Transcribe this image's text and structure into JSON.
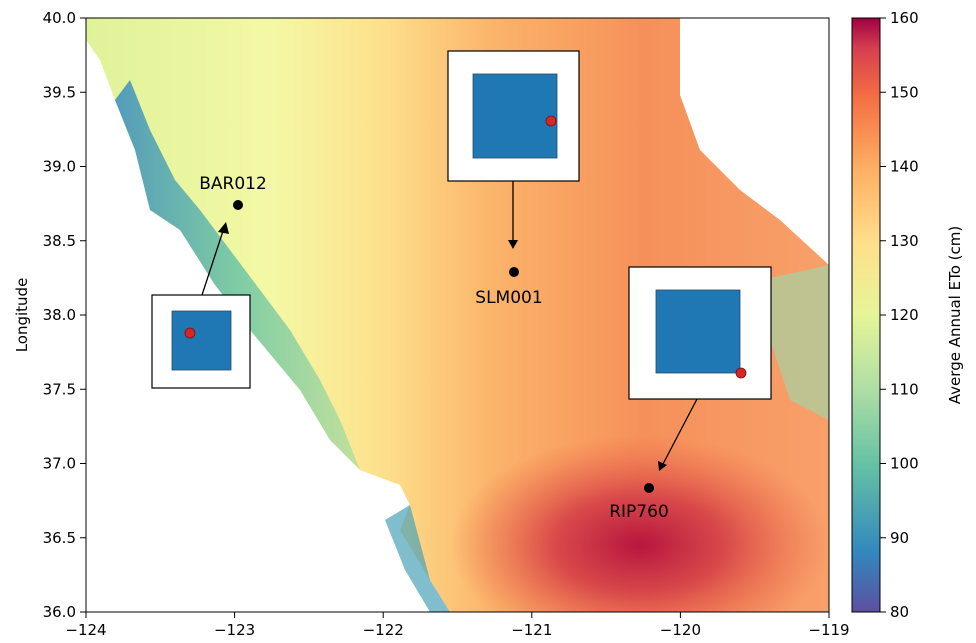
{
  "map": {
    "ylabel": "Longitude",
    "xlim": [
      -124,
      -119
    ],
    "ylim": [
      36.0,
      40.0
    ],
    "x_ticks": [
      "−124",
      "−123",
      "−122",
      "−121",
      "−120",
      "−119"
    ],
    "y_ticks": [
      "36.0",
      "36.5",
      "37.0",
      "37.5",
      "38.0",
      "38.5",
      "39.0",
      "39.5",
      "40.0"
    ],
    "colormap": "Spectral_r"
  },
  "colorbar": {
    "label": "Averge Annual ETo (cm)",
    "range": [
      80,
      160
    ],
    "ticks": [
      "80",
      "90",
      "100",
      "110",
      "120",
      "130",
      "140",
      "150",
      "160"
    ],
    "colors": [
      "#5e4fa2",
      "#3288bd",
      "#66c2a5",
      "#abdda4",
      "#e6f598",
      "#fee08b",
      "#fdae61",
      "#f46d43",
      "#d53e4f",
      "#9e0142"
    ]
  },
  "stations": [
    {
      "name": "BAR012",
      "lon": -122.97,
      "lat": 38.75
    },
    {
      "name": "SLM001",
      "lon": -121.13,
      "lat": 38.29
    },
    {
      "name": "RIP760",
      "lon": -120.23,
      "lat": 36.84
    }
  ],
  "insets": [
    {
      "station": "BAR012",
      "marker": "red-dot"
    },
    {
      "station": "SLM001",
      "marker": "red-dot"
    },
    {
      "station": "RIP760",
      "marker": "red-dot"
    }
  ],
  "colors": {
    "inset_square": "#1f77b4",
    "inset_marker": "#d62728",
    "station_marker": "#000000"
  }
}
